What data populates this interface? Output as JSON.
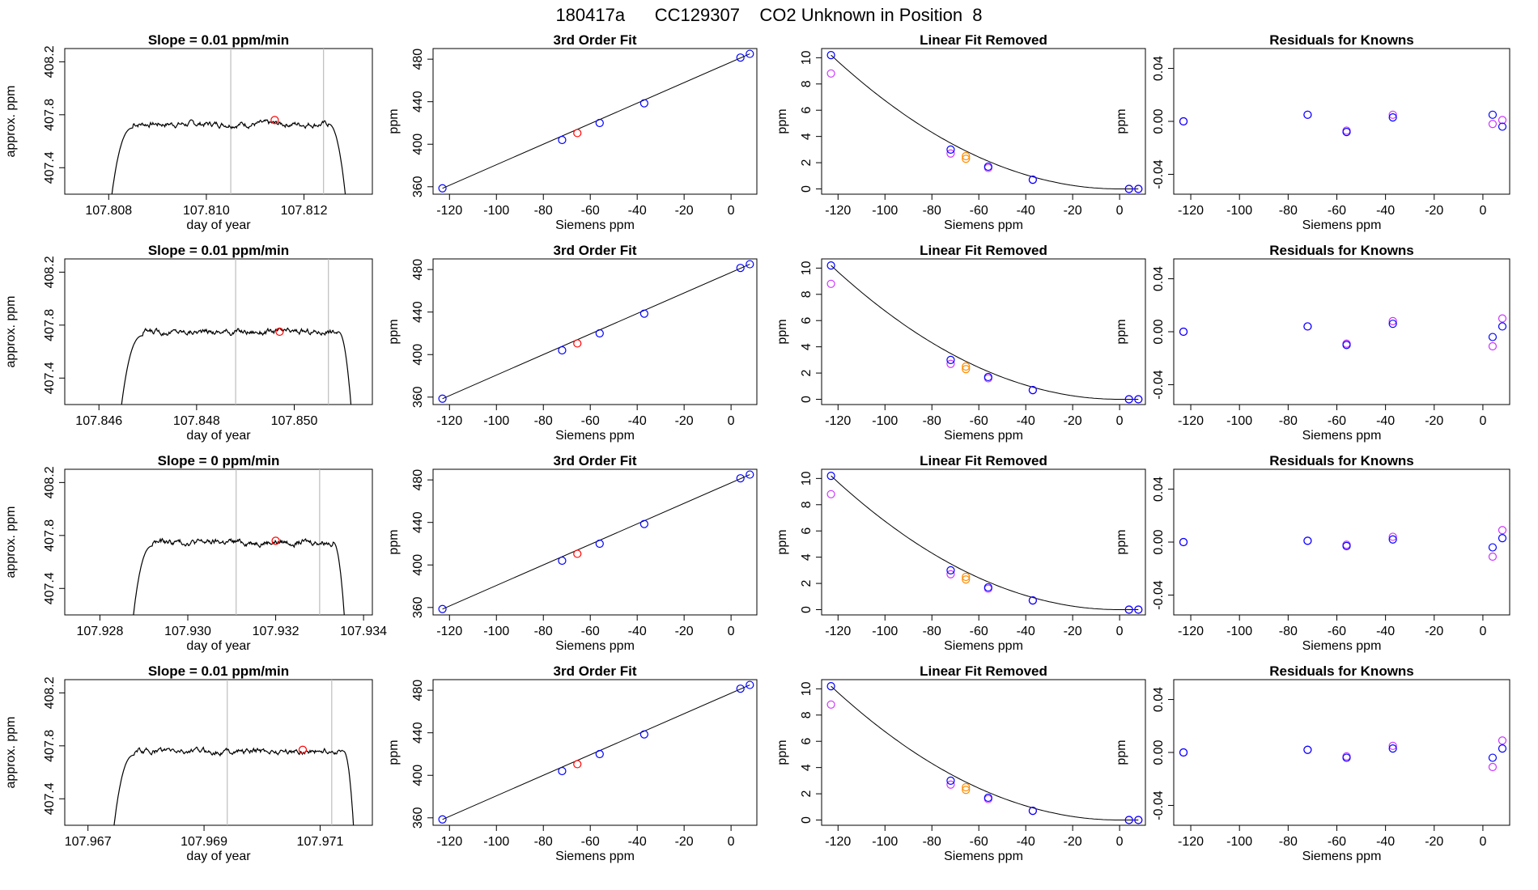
{
  "page": {
    "title": "180417a      CC129307    CO2 Unknown in Position  8"
  },
  "colors": {
    "trace": "#000000",
    "fit_line": "#000000",
    "known_blue": "#0000ff",
    "known_magenta": "#cc33ff",
    "unknown_red": "#ff0000",
    "unknown_orange": "#ff8c00",
    "residual_purple": "#8a2be2",
    "interval_lines": "#bdbdbd"
  },
  "chart_data": [
    {
      "type": "line",
      "row": 0,
      "panel": "timeseries",
      "title": "Slope =  0.01  ppm/min",
      "xlabel": "day of year",
      "ylabel": "approx. ppm",
      "xlim": [
        107.8071,
        107.8134
      ],
      "ylim": [
        407.2,
        408.3
      ],
      "xticks": [
        107.808,
        107.81,
        107.812
      ],
      "xtick_labels": [
        "107.808",
        "107.810",
        "107.812"
      ],
      "yticks": [
        407.4,
        407.8,
        408.2
      ],
      "ytick_labels": [
        "407.4",
        "407.8",
        "408.2"
      ],
      "rise": [
        107.808,
        107.8085
      ],
      "fall": [
        107.8125,
        107.8129
      ],
      "plateau": 407.73,
      "vlines": [
        107.8105,
        107.8124
      ],
      "marker": [
        107.8114,
        407.76
      ]
    },
    {
      "type": "scatter",
      "row": 0,
      "panel": "cubic",
      "title": "3rd Order Fit",
      "xlabel": "Siemens ppm",
      "ylabel": "ppm",
      "xlim": [
        -127,
        11
      ],
      "ylim": [
        353,
        490
      ],
      "xticks": [
        -120,
        -100,
        -80,
        -60,
        -40,
        -20,
        0
      ],
      "xtick_labels": [
        "-120",
        "-100",
        "-80",
        "-60",
        "-40",
        "-20",
        "0"
      ],
      "yticks": [
        360,
        400,
        440,
        480
      ],
      "ytick_labels": [
        "360",
        "400",
        "440",
        "480"
      ],
      "points": [
        [
          -123,
          358.5
        ],
        [
          -72,
          404
        ],
        [
          -56,
          420
        ],
        [
          -37,
          438.5
        ],
        [
          4,
          481.5
        ],
        [
          8,
          485
        ]
      ],
      "unknown": [
        [
          -65.5,
          410.5
        ]
      ]
    },
    {
      "type": "scatter",
      "row": 0,
      "panel": "nonlinear",
      "title": "Linear Fit Removed",
      "xlabel": "Siemens ppm",
      "ylabel": "ppm",
      "xlim": [
        -127,
        11
      ],
      "ylim": [
        -0.4,
        10.7
      ],
      "xticks": [
        -120,
        -100,
        -80,
        -60,
        -40,
        -20,
        0
      ],
      "xtick_labels": [
        "-120",
        "-100",
        "-80",
        "-60",
        "-40",
        "-20",
        "0"
      ],
      "yticks": [
        0,
        2,
        4,
        6,
        8,
        10
      ],
      "ytick_labels": [
        "0",
        "2",
        "4",
        "6",
        "8",
        "10"
      ],
      "blue": [
        [
          -123,
          10.2
        ],
        [
          -72,
          3.0
        ],
        [
          -56,
          1.7
        ],
        [
          -37,
          0.7
        ],
        [
          4,
          0.0
        ],
        [
          8,
          0.0
        ]
      ],
      "magenta": [
        [
          -123,
          8.8
        ],
        [
          -72,
          2.7
        ],
        [
          -56,
          1.6
        ],
        [
          -37,
          0.7
        ],
        [
          4,
          0.0
        ],
        [
          8,
          0.0
        ]
      ],
      "unknown": [
        [
          -65.5,
          2.3
        ],
        [
          -65.5,
          2.5
        ]
      ]
    },
    {
      "type": "scatter",
      "row": 0,
      "panel": "residuals",
      "title": "Residuals for Knowns",
      "xlabel": "Siemens ppm",
      "ylabel": "ppm",
      "xlim": [
        -127,
        11
      ],
      "ylim": [
        -0.055,
        0.055
      ],
      "xticks": [
        -120,
        -100,
        -80,
        -60,
        -40,
        -20,
        0
      ],
      "xtick_labels": [
        "-120",
        "-100",
        "-80",
        "-60",
        "-40",
        "-20",
        "0"
      ],
      "yticks": [
        -0.04,
        0.0,
        0.04
      ],
      "ytick_labels": [
        "-0.04",
        "0.00",
        "0.04"
      ],
      "blue": [
        [
          -123,
          0.0
        ],
        [
          -72,
          0.005
        ],
        [
          -56,
          -0.008
        ],
        [
          -37,
          0.003
        ],
        [
          4,
          0.005
        ],
        [
          8,
          -0.004
        ]
      ],
      "magenta": [
        [
          -123,
          0.0
        ],
        [
          -72,
          0.005
        ],
        [
          -56,
          -0.007
        ],
        [
          -37,
          0.005
        ],
        [
          4,
          -0.002
        ],
        [
          8,
          0.001
        ]
      ]
    },
    {
      "type": "line",
      "row": 1,
      "panel": "timeseries",
      "title": "Slope =  0.01  ppm/min",
      "xlabel": "day of year",
      "ylabel": "approx. ppm",
      "xlim": [
        107.8453,
        107.8516
      ],
      "ylim": [
        407.2,
        408.3
      ],
      "xticks": [
        107.846,
        107.848,
        107.85
      ],
      "xtick_labels": [
        "107.846",
        "107.848",
        "107.850"
      ],
      "yticks": [
        407.4,
        407.8,
        408.2
      ],
      "ytick_labels": [
        "407.4",
        "407.8",
        "408.2"
      ],
      "rise": [
        107.8464,
        107.8469
      ],
      "fall": [
        107.8509,
        107.8512
      ],
      "plateau": 407.75,
      "vlines": [
        107.8488,
        107.8507
      ],
      "marker": [
        107.8497,
        407.75
      ]
    },
    {
      "type": "scatter",
      "row": 1,
      "panel": "cubic",
      "title": "3rd Order Fit",
      "xlabel": "Siemens ppm",
      "ylabel": "ppm",
      "xlim": [
        -127,
        11
      ],
      "ylim": [
        353,
        490
      ],
      "xticks": [
        -120,
        -100,
        -80,
        -60,
        -40,
        -20,
        0
      ],
      "xtick_labels": [
        "-120",
        "-100",
        "-80",
        "-60",
        "-40",
        "-20",
        "0"
      ],
      "yticks": [
        360,
        400,
        440,
        480
      ],
      "ytick_labels": [
        "360",
        "400",
        "440",
        "480"
      ],
      "points": [
        [
          -123,
          358.5
        ],
        [
          -72,
          404
        ],
        [
          -56,
          420
        ],
        [
          -37,
          438.5
        ],
        [
          4,
          481.5
        ],
        [
          8,
          485
        ]
      ],
      "unknown": [
        [
          -65.5,
          410.5
        ]
      ]
    },
    {
      "type": "scatter",
      "row": 1,
      "panel": "nonlinear",
      "title": "Linear Fit Removed",
      "xlabel": "Siemens ppm",
      "ylabel": "ppm",
      "xlim": [
        -127,
        11
      ],
      "ylim": [
        -0.4,
        10.7
      ],
      "xticks": [
        -120,
        -100,
        -80,
        -60,
        -40,
        -20,
        0
      ],
      "xtick_labels": [
        "-120",
        "-100",
        "-80",
        "-60",
        "-40",
        "-20",
        "0"
      ],
      "yticks": [
        0,
        2,
        4,
        6,
        8,
        10
      ],
      "ytick_labels": [
        "0",
        "2",
        "4",
        "6",
        "8",
        "10"
      ],
      "blue": [
        [
          -123,
          10.2
        ],
        [
          -72,
          3.0
        ],
        [
          -56,
          1.7
        ],
        [
          -37,
          0.7
        ],
        [
          4,
          0.0
        ],
        [
          8,
          0.0
        ]
      ],
      "magenta": [
        [
          -123,
          8.8
        ],
        [
          -72,
          2.7
        ],
        [
          -56,
          1.6
        ],
        [
          -37,
          0.7
        ],
        [
          4,
          0.0
        ],
        [
          8,
          0.0
        ]
      ],
      "unknown": [
        [
          -65.5,
          2.3
        ],
        [
          -65.5,
          2.5
        ]
      ]
    },
    {
      "type": "scatter",
      "row": 1,
      "panel": "residuals",
      "title": "Residuals for Knowns",
      "xlabel": "Siemens ppm",
      "ylabel": "ppm",
      "xlim": [
        -127,
        11
      ],
      "ylim": [
        -0.055,
        0.055
      ],
      "xticks": [
        -120,
        -100,
        -80,
        -60,
        -40,
        -20,
        0
      ],
      "xtick_labels": [
        "-120",
        "-100",
        "-80",
        "-60",
        "-40",
        "-20",
        "0"
      ],
      "yticks": [
        -0.04,
        0.0,
        0.04
      ],
      "ytick_labels": [
        "-0.04",
        "0.00",
        "0.04"
      ],
      "blue": [
        [
          -123,
          0.0
        ],
        [
          -72,
          0.004
        ],
        [
          -56,
          -0.01
        ],
        [
          -37,
          0.006
        ],
        [
          4,
          -0.004
        ],
        [
          8,
          0.004
        ]
      ],
      "magenta": [
        [
          -123,
          0.0
        ],
        [
          -72,
          0.004
        ],
        [
          -56,
          -0.009
        ],
        [
          -37,
          0.008
        ],
        [
          4,
          -0.011
        ],
        [
          8,
          0.01
        ]
      ]
    },
    {
      "type": "line",
      "row": 2,
      "panel": "timeseries",
      "title": "Slope =  0  ppm/min",
      "xlabel": "day of year",
      "ylabel": "approx. ppm",
      "xlim": [
        107.9272,
        107.9342
      ],
      "ylim": [
        407.2,
        408.3
      ],
      "xticks": [
        107.928,
        107.93,
        107.932,
        107.934
      ],
      "xtick_labels": [
        "107.928",
        "107.930",
        "107.932",
        "107.934"
      ],
      "yticks": [
        407.4,
        407.8,
        408.2
      ],
      "ytick_labels": [
        "407.4",
        "407.8",
        "408.2"
      ],
      "rise": [
        107.9287,
        107.9292
      ],
      "fall": [
        107.9333,
        107.9336
      ],
      "plateau": 407.75,
      "vlines": [
        107.9311,
        107.933
      ],
      "marker": [
        107.932,
        407.76
      ]
    },
    {
      "type": "scatter",
      "row": 2,
      "panel": "cubic",
      "title": "3rd Order Fit",
      "xlabel": "Siemens ppm",
      "ylabel": "ppm",
      "xlim": [
        -127,
        11
      ],
      "ylim": [
        353,
        490
      ],
      "xticks": [
        -120,
        -100,
        -80,
        -60,
        -40,
        -20,
        0
      ],
      "xtick_labels": [
        "-120",
        "-100",
        "-80",
        "-60",
        "-40",
        "-20",
        "0"
      ],
      "yticks": [
        360,
        400,
        440,
        480
      ],
      "ytick_labels": [
        "360",
        "400",
        "440",
        "480"
      ],
      "points": [
        [
          -123,
          358.5
        ],
        [
          -72,
          404
        ],
        [
          -56,
          420
        ],
        [
          -37,
          438.5
        ],
        [
          4,
          481.5
        ],
        [
          8,
          485
        ]
      ],
      "unknown": [
        [
          -65.5,
          410.5
        ]
      ]
    },
    {
      "type": "scatter",
      "row": 2,
      "panel": "nonlinear",
      "title": "Linear Fit Removed",
      "xlabel": "Siemens ppm",
      "ylabel": "ppm",
      "xlim": [
        -127,
        11
      ],
      "ylim": [
        -0.4,
        10.7
      ],
      "xticks": [
        -120,
        -100,
        -80,
        -60,
        -40,
        -20,
        0
      ],
      "xtick_labels": [
        "-120",
        "-100",
        "-80",
        "-60",
        "-40",
        "-20",
        "0"
      ],
      "yticks": [
        0,
        2,
        4,
        6,
        8,
        10
      ],
      "ytick_labels": [
        "0",
        "2",
        "4",
        "6",
        "8",
        "10"
      ],
      "blue": [
        [
          -123,
          10.2
        ],
        [
          -72,
          3.0
        ],
        [
          -56,
          1.7
        ],
        [
          -37,
          0.7
        ],
        [
          4,
          0.0
        ],
        [
          8,
          0.0
        ]
      ],
      "magenta": [
        [
          -123,
          8.8
        ],
        [
          -72,
          2.7
        ],
        [
          -56,
          1.6
        ],
        [
          -37,
          0.7
        ],
        [
          4,
          0.0
        ],
        [
          8,
          0.0
        ]
      ],
      "unknown": [
        [
          -65.5,
          2.3
        ],
        [
          -65.5,
          2.5
        ]
      ]
    },
    {
      "type": "scatter",
      "row": 2,
      "panel": "residuals",
      "title": "Residuals for Knowns",
      "xlabel": "Siemens ppm",
      "ylabel": "ppm",
      "xlim": [
        -127,
        11
      ],
      "ylim": [
        -0.055,
        0.055
      ],
      "xticks": [
        -120,
        -100,
        -80,
        -60,
        -40,
        -20,
        0
      ],
      "xtick_labels": [
        "-120",
        "-100",
        "-80",
        "-60",
        "-40",
        "-20",
        "0"
      ],
      "yticks": [
        -0.04,
        0.0,
        0.04
      ],
      "ytick_labels": [
        "-0.04",
        "0.00",
        "0.04"
      ],
      "blue": [
        [
          -123,
          0.0
        ],
        [
          -72,
          0.001
        ],
        [
          -56,
          -0.003
        ],
        [
          -37,
          0.002
        ],
        [
          4,
          -0.004
        ],
        [
          8,
          0.003
        ]
      ],
      "magenta": [
        [
          -123,
          0.0
        ],
        [
          -72,
          0.001
        ],
        [
          -56,
          -0.002
        ],
        [
          -37,
          0.004
        ],
        [
          4,
          -0.011
        ],
        [
          8,
          0.009
        ]
      ]
    },
    {
      "type": "line",
      "row": 3,
      "panel": "timeseries",
      "title": "Slope =  0.01  ppm/min",
      "xlabel": "day of year",
      "ylabel": "approx. ppm",
      "xlim": [
        107.9666,
        107.9719
      ],
      "ylim": [
        407.2,
        408.3
      ],
      "xticks": [
        107.967,
        107.969,
        107.971
      ],
      "xtick_labels": [
        "107.967",
        "107.969",
        "107.971"
      ],
      "yticks": [
        407.4,
        407.8,
        408.2
      ],
      "ytick_labels": [
        "407.4",
        "407.8",
        "408.2"
      ],
      "rise": [
        107.9674,
        107.9678
      ],
      "fall": [
        107.9714,
        107.9716
      ],
      "plateau": 407.76,
      "vlines": [
        107.9694,
        107.9712
      ],
      "marker": [
        107.9707,
        407.77
      ]
    },
    {
      "type": "scatter",
      "row": 3,
      "panel": "cubic",
      "title": "3rd Order Fit",
      "xlabel": "Siemens ppm",
      "ylabel": "ppm",
      "xlim": [
        -127,
        11
      ],
      "ylim": [
        353,
        490
      ],
      "xticks": [
        -120,
        -100,
        -80,
        -60,
        -40,
        -20,
        0
      ],
      "xtick_labels": [
        "-120",
        "-100",
        "-80",
        "-60",
        "-40",
        "-20",
        "0"
      ],
      "yticks": [
        360,
        400,
        440,
        480
      ],
      "ytick_labels": [
        "360",
        "400",
        "440",
        "480"
      ],
      "points": [
        [
          -123,
          358.5
        ],
        [
          -72,
          404
        ],
        [
          -56,
          420
        ],
        [
          -37,
          438.5
        ],
        [
          4,
          481.5
        ],
        [
          8,
          485
        ]
      ],
      "unknown": [
        [
          -65.5,
          410.5
        ]
      ]
    },
    {
      "type": "scatter",
      "row": 3,
      "panel": "nonlinear",
      "title": "Linear Fit Removed",
      "xlabel": "Siemens ppm",
      "ylabel": "ppm",
      "xlim": [
        -127,
        11
      ],
      "ylim": [
        -0.4,
        10.7
      ],
      "xticks": [
        -120,
        -100,
        -80,
        -60,
        -40,
        -20,
        0
      ],
      "xtick_labels": [
        "-120",
        "-100",
        "-80",
        "-60",
        "-40",
        "-20",
        "0"
      ],
      "yticks": [
        0,
        2,
        4,
        6,
        8,
        10
      ],
      "ytick_labels": [
        "0",
        "2",
        "4",
        "6",
        "8",
        "10"
      ],
      "blue": [
        [
          -123,
          10.2
        ],
        [
          -72,
          3.0
        ],
        [
          -56,
          1.7
        ],
        [
          -37,
          0.7
        ],
        [
          4,
          0.0
        ],
        [
          8,
          0.0
        ]
      ],
      "magenta": [
        [
          -123,
          8.8
        ],
        [
          -72,
          2.7
        ],
        [
          -56,
          1.6
        ],
        [
          -37,
          0.7
        ],
        [
          4,
          0.0
        ],
        [
          8,
          0.0
        ]
      ],
      "unknown": [
        [
          -65.5,
          2.3
        ],
        [
          -65.5,
          2.5
        ]
      ]
    },
    {
      "type": "scatter",
      "row": 3,
      "panel": "residuals",
      "title": "Residuals for Knowns",
      "xlabel": "Siemens ppm",
      "ylabel": "ppm",
      "xlim": [
        -127,
        11
      ],
      "ylim": [
        -0.055,
        0.055
      ],
      "xticks": [
        -120,
        -100,
        -80,
        -60,
        -40,
        -20,
        0
      ],
      "xtick_labels": [
        "-120",
        "-100",
        "-80",
        "-60",
        "-40",
        "-20",
        "0"
      ],
      "yticks": [
        -0.04,
        0.0,
        0.04
      ],
      "ytick_labels": [
        "-0.04",
        "0.00",
        "0.04"
      ],
      "blue": [
        [
          -123,
          0.0
        ],
        [
          -72,
          0.002
        ],
        [
          -56,
          -0.004
        ],
        [
          -37,
          0.003
        ],
        [
          4,
          -0.004
        ],
        [
          8,
          0.003
        ]
      ],
      "magenta": [
        [
          -123,
          0.0
        ],
        [
          -72,
          0.002
        ],
        [
          -56,
          -0.003
        ],
        [
          -37,
          0.005
        ],
        [
          4,
          -0.011
        ],
        [
          8,
          0.009
        ]
      ]
    }
  ]
}
